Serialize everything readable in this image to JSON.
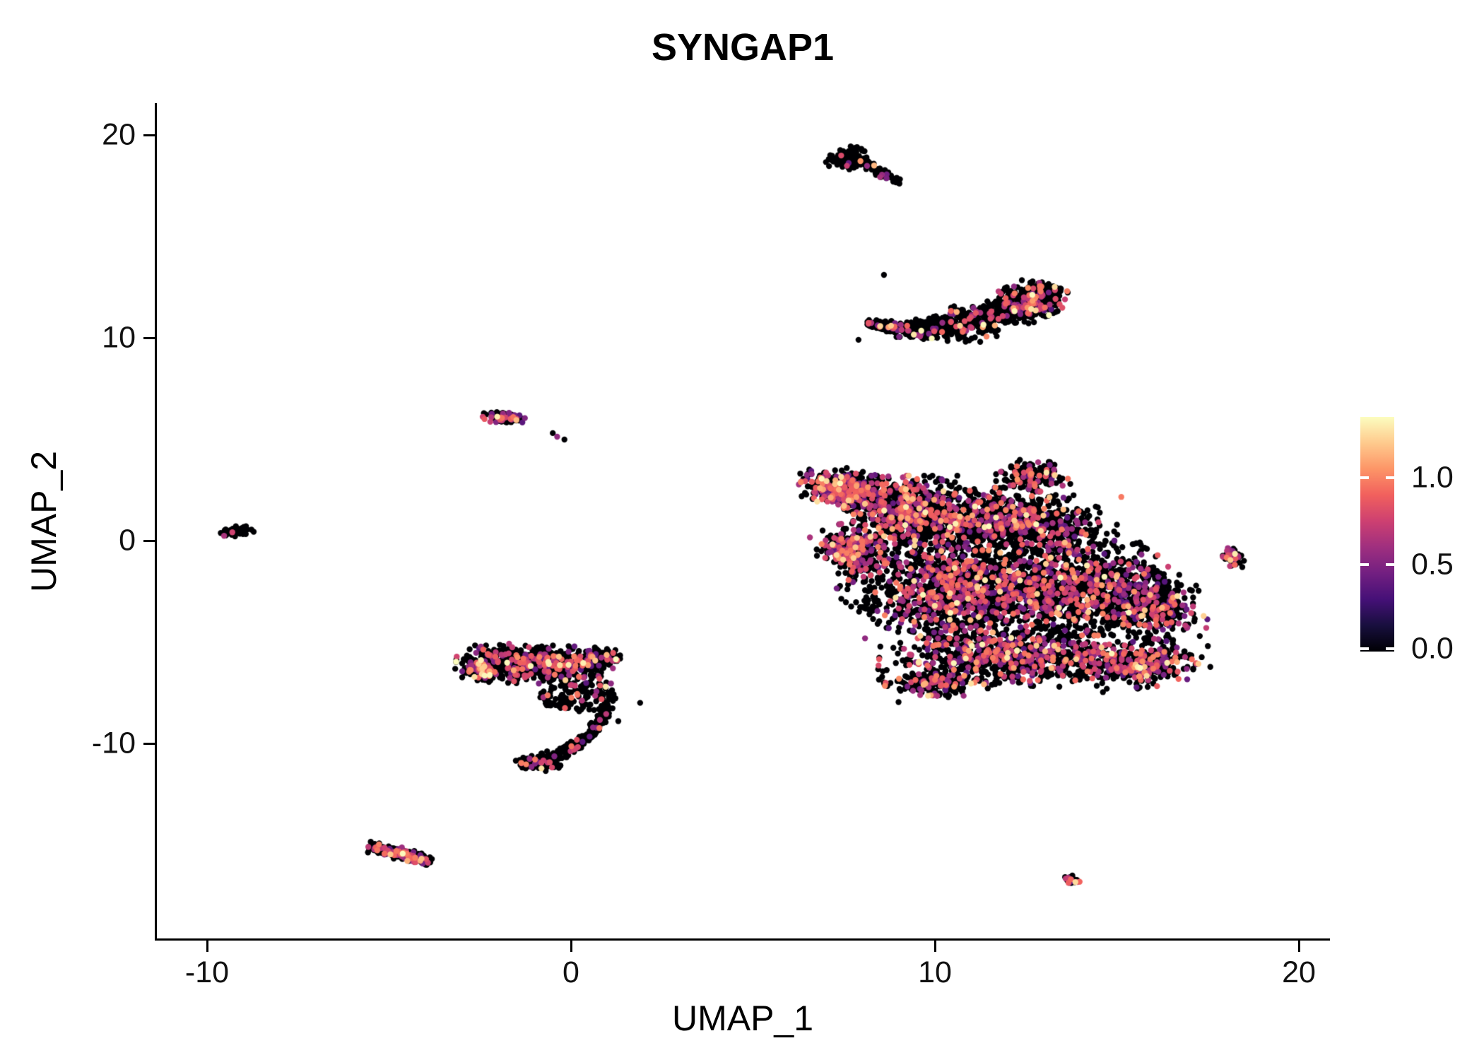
{
  "title": "SYNGAP1",
  "axes": {
    "x": {
      "label": "UMAP_1",
      "ticks": [
        {
          "value": -10,
          "label": "-10"
        },
        {
          "value": 0,
          "label": "0"
        },
        {
          "value": 10,
          "label": "10"
        },
        {
          "value": 20,
          "label": "20"
        }
      ]
    },
    "y": {
      "label": "UMAP_2",
      "ticks": [
        {
          "value": -10,
          "label": "-10"
        },
        {
          "value": 0,
          "label": "0"
        },
        {
          "value": 10,
          "label": "10"
        },
        {
          "value": 20,
          "label": "20"
        }
      ]
    }
  },
  "legend": {
    "max": 1.35,
    "ticks": [
      {
        "value": 0.0,
        "label": "0.0"
      },
      {
        "value": 0.5,
        "label": "0.5"
      },
      {
        "value": 1.0,
        "label": "1.0"
      }
    ]
  },
  "colors": {
    "background": "#ffffff",
    "axis": "#000000",
    "colormap": [
      "#000004",
      "#180f3e",
      "#451077",
      "#721f81",
      "#9f2f7f",
      "#cd4071",
      "#f1605d",
      "#fd9567",
      "#feca8d",
      "#fcfdbf"
    ]
  },
  "chart_data": {
    "type": "scatter",
    "title": "SYNGAP1",
    "xlabel": "UMAP_1",
    "ylabel": "UMAP_2",
    "xlim": [
      -11.4,
      20.8
    ],
    "ylim": [
      -19.6,
      21.5
    ],
    "grid": false,
    "legend_position": "right",
    "point_radius_px": 4.2,
    "seed": 421,
    "value_dist": {
      "low_min": 0.35,
      "low_max": 1.0,
      "high_min": 1.0,
      "high_max": 1.35,
      "high_frac": 0.1
    },
    "clusters": [
      {
        "name": "top-blob",
        "shape": "blob",
        "cx": 7.62,
        "cy": 18.85,
        "rx": 0.42,
        "ry": 0.5,
        "rot": -30,
        "n": 130,
        "colored": 0.02
      },
      {
        "name": "top-tail",
        "shape": "curve",
        "p": [
          [
            7.5,
            19.1
          ],
          [
            8.1,
            18.6
          ],
          [
            9.0,
            17.6
          ]
        ],
        "thick": [
          0.3,
          0.12
        ],
        "n": 120,
        "colored": 0.05
      },
      {
        "name": "crescent-body",
        "shape": "curve",
        "p": [
          [
            8.15,
            10.75
          ],
          [
            9.8,
            9.95
          ],
          [
            12.0,
            10.7
          ],
          [
            13.3,
            12.55
          ]
        ],
        "thick": [
          0.12,
          0.8,
          0.5
        ],
        "n": 850,
        "colored": 0.12
      },
      {
        "name": "crescent-right-bulge",
        "shape": "blob",
        "cx": 12.55,
        "cy": 11.8,
        "rx": 0.75,
        "ry": 0.75,
        "rot": 40,
        "n": 260,
        "colored": 0.2
      },
      {
        "name": "main-topleft-arm",
        "shape": "blob",
        "cx": 7.55,
        "cy": 2.55,
        "rx": 1.05,
        "ry": 0.8,
        "rot": -25,
        "n": 420,
        "colored": 0.45
      },
      {
        "name": "main-left-lobe",
        "shape": "blob",
        "cx": 9.3,
        "cy": 1.4,
        "rx": 1.5,
        "ry": 1.5,
        "rot": 0,
        "n": 650,
        "colored": 0.35
      },
      {
        "name": "main-left-spur",
        "shape": "blob",
        "cx": 7.7,
        "cy": -0.5,
        "rx": 0.8,
        "ry": 1.1,
        "rot": 25,
        "n": 280,
        "colored": 0.4
      },
      {
        "name": "main-top-mid",
        "shape": "blob",
        "cx": 12.0,
        "cy": 0.9,
        "rx": 2.5,
        "ry": 1.4,
        "rot": -5,
        "n": 850,
        "colored": 0.28
      },
      {
        "name": "main-top-bump",
        "shape": "blob",
        "cx": 12.7,
        "cy": 3.2,
        "rx": 0.85,
        "ry": 0.65,
        "rot": 0,
        "n": 170,
        "colored": 0.25
      },
      {
        "name": "main-center-left",
        "shape": "blob",
        "cx": 10.6,
        "cy": -2.3,
        "rx": 2.1,
        "ry": 2.1,
        "rot": 0,
        "n": 950,
        "colored": 0.33
      },
      {
        "name": "main-center-right",
        "shape": "blob",
        "cx": 13.6,
        "cy": -2.4,
        "rx": 2.1,
        "ry": 1.9,
        "rot": 0,
        "n": 850,
        "colored": 0.3
      },
      {
        "name": "main-right-arm",
        "shape": "blob",
        "cx": 15.95,
        "cy": -3.2,
        "rx": 1.2,
        "ry": 1.5,
        "rot": 15,
        "n": 420,
        "colored": 0.3
      },
      {
        "name": "main-bottom-band",
        "shape": "blob",
        "cx": 12.2,
        "cy": -5.7,
        "rx": 3.1,
        "ry": 1.2,
        "rot": -3,
        "n": 850,
        "colored": 0.33
      },
      {
        "name": "main-bottom-right",
        "shape": "blob",
        "cx": 15.7,
        "cy": -6.1,
        "rx": 1.5,
        "ry": 0.95,
        "rot": 12,
        "n": 380,
        "colored": 0.3
      },
      {
        "name": "main-bottom-tail",
        "shape": "blob",
        "cx": 10.0,
        "cy": -7.0,
        "rx": 1.15,
        "ry": 0.65,
        "rot": 10,
        "n": 230,
        "colored": 0.3
      },
      {
        "name": "main-sparse-halo",
        "shape": "blob",
        "cx": 11.8,
        "cy": -1.9,
        "rx": 4.6,
        "ry": 3.3,
        "rot": 0,
        "n": 650,
        "colored": 0.15,
        "dist": "uniform"
      },
      {
        "name": "right-tiny",
        "shape": "blob",
        "cx": 18.2,
        "cy": -0.85,
        "rx": 0.25,
        "ry": 0.42,
        "rot": 15,
        "n": 48,
        "colored": 0.45
      },
      {
        "name": "farleft-tiny",
        "shape": "blob",
        "cx": -9.2,
        "cy": 0.42,
        "rx": 0.38,
        "ry": 0.22,
        "rot": 25,
        "n": 55,
        "colored": 0.03
      },
      {
        "name": "midleft-main",
        "shape": "blob",
        "cx": -1.0,
        "cy": -6.1,
        "rx": 1.8,
        "ry": 0.8,
        "rot": -4,
        "n": 680,
        "colored": 0.22
      },
      {
        "name": "midleft-left-edge",
        "shape": "blob",
        "cx": -2.45,
        "cy": -6.35,
        "rx": 0.45,
        "ry": 0.45,
        "rot": 0,
        "n": 130,
        "colored": 0.35
      },
      {
        "name": "midleft-right-bump",
        "shape": "blob",
        "cx": 0.75,
        "cy": -5.75,
        "rx": 0.5,
        "ry": 0.4,
        "rot": 0,
        "n": 140,
        "colored": 0.2
      },
      {
        "name": "midleft-scatter",
        "shape": "blob",
        "cx": 0.2,
        "cy": -7.7,
        "rx": 1.05,
        "ry": 0.75,
        "rot": 0,
        "n": 130,
        "colored": 0.1,
        "dist": "uniform"
      },
      {
        "name": "midleft-tail",
        "shape": "curve",
        "p": [
          [
            1.0,
            -8.2
          ],
          [
            0.7,
            -9.6
          ],
          [
            0.1,
            -10.5
          ],
          [
            -1.3,
            -11.1
          ]
        ],
        "thick": [
          0.16,
          0.2,
          0.3
        ],
        "n": 250,
        "colored": 0.08
      },
      {
        "name": "midleft-tail-hook",
        "shape": "blob",
        "cx": -0.95,
        "cy": -11.0,
        "rx": 0.55,
        "ry": 0.3,
        "rot": -15,
        "n": 110,
        "colored": 0.15
      },
      {
        "name": "upperleft-small",
        "shape": "blob",
        "cx": -1.85,
        "cy": 6.05,
        "rx": 0.48,
        "ry": 0.27,
        "rot": -10,
        "n": 115,
        "colored": 0.3
      },
      {
        "name": "bottomleft",
        "shape": "curve",
        "p": [
          [
            -5.55,
            -15.05
          ],
          [
            -5.0,
            -15.3
          ],
          [
            -4.5,
            -15.55
          ],
          [
            -3.85,
            -15.85
          ]
        ],
        "thick": [
          0.2,
          0.3,
          0.18
        ],
        "n": 210,
        "colored": 0.3
      },
      {
        "name": "bottomright-tiny",
        "shape": "blob",
        "cx": 13.72,
        "cy": -16.68,
        "rx": 0.28,
        "ry": 0.16,
        "rot": -30,
        "n": 30,
        "colored": 0.35
      }
    ],
    "strays": [
      [
        -0.38,
        5.12,
        0.55
      ],
      [
        -0.18,
        4.98,
        0
      ],
      [
        -0.5,
        5.3,
        0
      ],
      [
        6.55,
        3.5,
        0
      ],
      [
        6.3,
        3.3,
        0
      ],
      [
        1.3,
        -8.9,
        0
      ],
      [
        1.9,
        -8.0,
        0
      ],
      [
        17.5,
        -5.2,
        0
      ],
      [
        8.6,
        13.1,
        0
      ],
      [
        7.9,
        9.9,
        0
      ]
    ]
  }
}
